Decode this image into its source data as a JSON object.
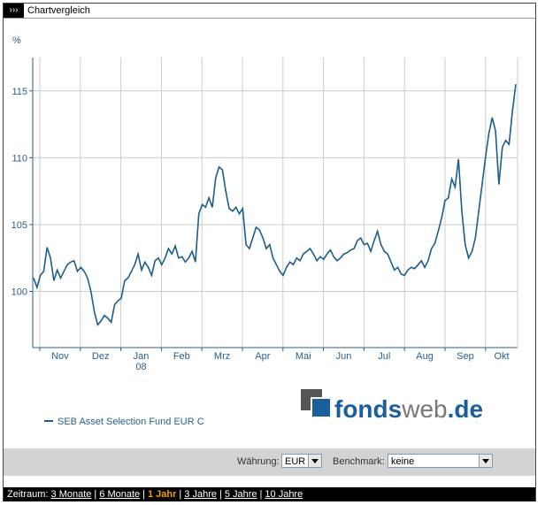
{
  "header": {
    "icon": "›››",
    "title": "Chartvergleich"
  },
  "chart_data": {
    "type": "line",
    "y_unit": "%",
    "ylim": [
      95.8,
      117.5
    ],
    "yticks": [
      100,
      105,
      110,
      115
    ],
    "grid": true,
    "x_labels": [
      "Nov",
      "Dez",
      "Jan",
      "Feb",
      "Mrz",
      "Apr",
      "Mai",
      "Jun",
      "Jul",
      "Aug",
      "Sep",
      "Okt"
    ],
    "x_year_label": "08",
    "series": [
      {
        "name": "SEB Asset Selection Fund EUR C",
        "color": "#1b5e8c",
        "values": [
          101,
          100.3,
          101.2,
          101.5,
          103.3,
          102.5,
          100.8,
          101.6,
          101,
          101.5,
          102,
          102.2,
          102.3,
          101.5,
          101.8,
          101.5,
          101,
          100,
          98.5,
          97.5,
          97.8,
          98.2,
          98,
          97.7,
          99,
          99.3,
          99.5,
          100.8,
          101,
          101.5,
          102,
          102.8,
          101.6,
          102.2,
          101.8,
          101.2,
          102.3,
          102.5,
          102,
          102.5,
          103.2,
          102.8,
          103.4,
          102.5,
          102.6,
          102.2,
          102.5,
          103,
          102.2,
          105.8,
          106.5,
          106.3,
          107,
          106.3,
          108.5,
          109.3,
          109.1,
          107.5,
          106.2,
          106,
          106.3,
          105.8,
          106.2,
          103.5,
          103.2,
          104,
          104.8,
          104.6,
          104,
          103.2,
          103.5,
          102.5,
          102,
          101.5,
          101.2,
          101.8,
          102.2,
          102,
          102.5,
          102.3,
          102.8,
          103,
          103.2,
          102.8,
          102.3,
          102.6,
          102.4,
          102.8,
          103.1,
          102.6,
          102.3,
          102.5,
          102.8,
          102.9,
          103.1,
          103.2,
          103.8,
          104,
          103.5,
          103.6,
          103,
          103.8,
          104.5,
          103.5,
          103,
          102.8,
          102.2,
          101.6,
          101.8,
          101.3,
          101.2,
          101.6,
          101.8,
          101.7,
          102,
          102.3,
          101.8,
          102.3,
          103.2,
          103.6,
          104.5,
          105.5,
          106.8,
          107,
          108.4,
          107.8,
          109.9,
          106,
          103.5,
          102.5,
          103,
          104,
          106,
          108,
          110,
          111.8,
          113,
          112,
          108,
          110.8,
          111.3,
          111,
          113.5,
          115.5
        ]
      }
    ]
  },
  "logo": {
    "brand": "fonds",
    "mid": "web",
    "tld": ".de"
  },
  "controls": {
    "currency_label": "Währung:",
    "currency": "EUR",
    "benchmark_label": "Benchmark:",
    "benchmark": "keine"
  },
  "timeframe": {
    "label": "Zeitraum:",
    "separator": "|",
    "options": [
      "3 Monate",
      "6 Monate",
      "1 Jahr",
      "3 Jahre",
      "5 Jahre",
      "10 Jahre"
    ],
    "active": 2
  }
}
